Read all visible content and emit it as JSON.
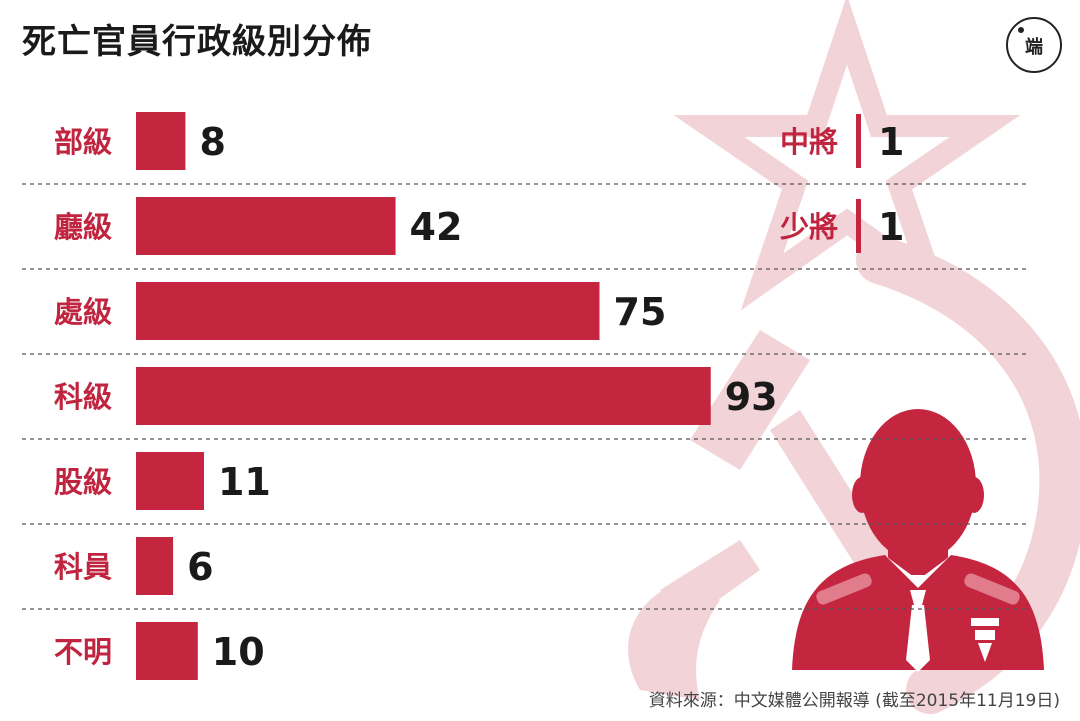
{
  "title": "死亡官員行政級別分佈",
  "logo_text": "端",
  "source": "資料來源：中文媒體公開報導 (截至2015年11月19日)",
  "colors": {
    "bar": "#c4253f",
    "label": "#c0243f",
    "value": "#1a1a1a",
    "bg_symbol": "#f2d4d8",
    "figure": "#c4253f"
  },
  "icons": [
    "star-icon",
    "hammer-and-sickle-icon",
    "officer-silhouette-icon",
    "logo-icon"
  ],
  "chart_data": {
    "type": "bar",
    "orientation": "horizontal",
    "categories": [
      "部級",
      "廳級",
      "處級",
      "科級",
      "股級",
      "科員",
      "不明"
    ],
    "values": [
      8,
      42,
      75,
      93,
      11,
      6,
      10
    ],
    "military": {
      "categories": [
        "中將",
        "少將"
      ],
      "values": [
        1,
        1
      ]
    },
    "grid": false,
    "separators": "dashed"
  }
}
